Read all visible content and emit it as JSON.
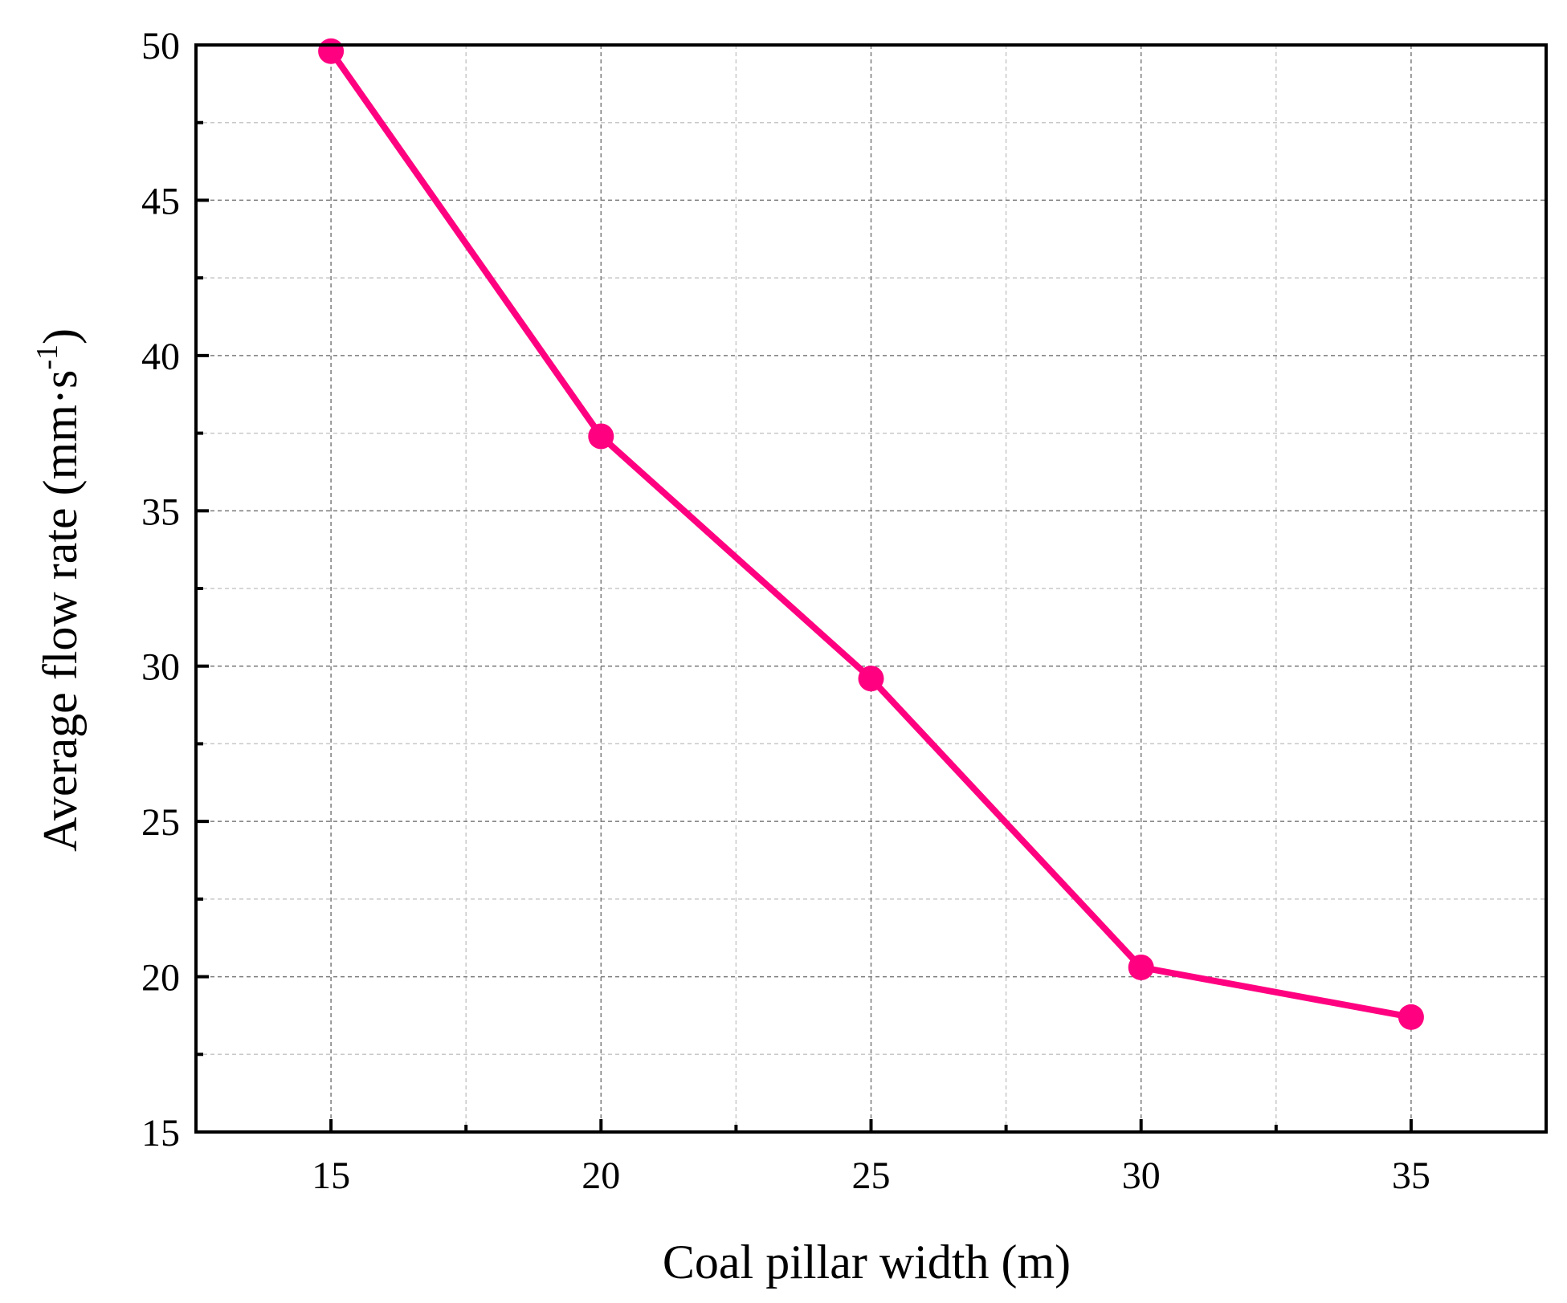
{
  "chart_data": {
    "type": "line",
    "title": "",
    "xlabel": "Coal pillar width (m)",
    "ylabel_main": "Average flow rate (mm·s",
    "ylabel_sup": "-1",
    "ylabel_close": ")",
    "xlim": [
      12.5,
      37.5
    ],
    "ylim": [
      15,
      50
    ],
    "xticks": [
      15,
      20,
      25,
      30,
      35
    ],
    "xminor": [
      17.5,
      22.5,
      27.5,
      32.5
    ],
    "yticks": [
      15,
      20,
      25,
      30,
      35,
      40,
      45,
      50
    ],
    "yminor": [
      17.5,
      22.5,
      27.5,
      32.5,
      37.5,
      42.5,
      47.5
    ],
    "xtick_labels": [
      "15",
      "20",
      "25",
      "30",
      "35"
    ],
    "ytick_labels": [
      "15",
      "20",
      "25",
      "30",
      "35",
      "40",
      "45",
      "50"
    ],
    "grid": true,
    "series": [
      {
        "name": "Average flow rate",
        "color": "#ff0080",
        "x": [
          15,
          20,
          25,
          30,
          35
        ],
        "y": [
          49.8,
          37.4,
          29.6,
          20.3,
          18.7
        ]
      }
    ]
  }
}
